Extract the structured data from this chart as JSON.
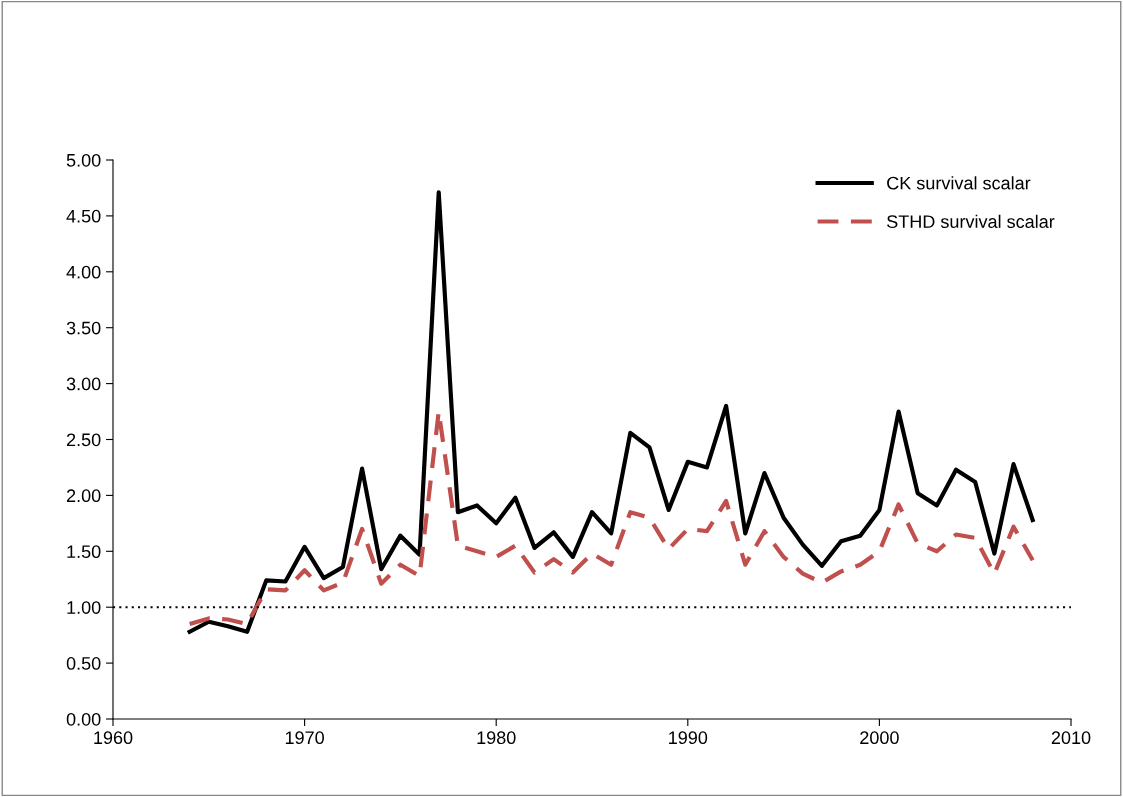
{
  "chart_data": {
    "type": "line",
    "x": [
      1964,
      1965,
      1966,
      1967,
      1968,
      1969,
      1970,
      1971,
      1972,
      1973,
      1974,
      1975,
      1976,
      1977,
      1978,
      1979,
      1980,
      1981,
      1982,
      1983,
      1984,
      1985,
      1986,
      1987,
      1988,
      1989,
      1990,
      1991,
      1992,
      1993,
      1994,
      1995,
      1996,
      1997,
      1998,
      1999,
      2000,
      2001,
      2002,
      2003,
      2004,
      2005,
      2006,
      2007,
      2008
    ],
    "series": [
      {
        "name": "CK survival scalar",
        "color": "#000000",
        "line_style": "solid",
        "values": [
          0.78,
          0.87,
          0.83,
          0.78,
          1.24,
          1.23,
          1.54,
          1.26,
          1.36,
          2.24,
          1.34,
          1.64,
          1.47,
          4.71,
          1.85,
          1.91,
          1.75,
          1.98,
          1.53,
          1.67,
          1.45,
          1.85,
          1.66,
          2.56,
          2.43,
          1.87,
          2.3,
          2.25,
          2.8,
          1.66,
          2.2,
          1.8,
          1.56,
          1.37,
          1.59,
          1.64,
          1.87,
          2.75,
          2.02,
          1.91,
          2.23,
          2.12,
          1.48,
          2.28,
          1.78
        ]
      },
      {
        "name": "STHD survival scalar",
        "color": "#c0504d",
        "line_style": "dashed",
        "values": [
          0.85,
          0.9,
          0.89,
          0.85,
          1.16,
          1.15,
          1.33,
          1.15,
          1.22,
          1.7,
          1.21,
          1.38,
          1.28,
          2.75,
          1.55,
          1.5,
          1.45,
          1.55,
          1.31,
          1.43,
          1.31,
          1.48,
          1.38,
          1.85,
          1.8,
          1.52,
          1.7,
          1.68,
          1.95,
          1.38,
          1.68,
          1.45,
          1.3,
          1.22,
          1.32,
          1.38,
          1.5,
          1.92,
          1.57,
          1.5,
          1.65,
          1.62,
          1.3,
          1.72,
          1.42
        ]
      }
    ],
    "ref_lines": [
      {
        "axis": "y",
        "value": 1.0,
        "color": "#000000",
        "line_style": "dotted"
      }
    ],
    "xlim": [
      1960,
      2010
    ],
    "xticks": [
      1960,
      1970,
      1980,
      1990,
      2000,
      2010
    ],
    "ylim": [
      0,
      5
    ],
    "yticks": [
      {
        "value": 0,
        "label": "0.00"
      },
      {
        "value": 0.5,
        "label": "0.50"
      },
      {
        "value": 1,
        "label": "1.00"
      },
      {
        "value": 1.5,
        "label": "1.50"
      },
      {
        "value": 2,
        "label": "2.00"
      },
      {
        "value": 2.5,
        "label": "2.50"
      },
      {
        "value": 3,
        "label": "3.00"
      },
      {
        "value": 3.5,
        "label": "3.50"
      },
      {
        "value": 4,
        "label": "4.00"
      },
      {
        "value": 4.5,
        "label": "4.50"
      },
      {
        "value": 5,
        "label": "5.00"
      }
    ],
    "grid": false,
    "legend": "top right"
  }
}
